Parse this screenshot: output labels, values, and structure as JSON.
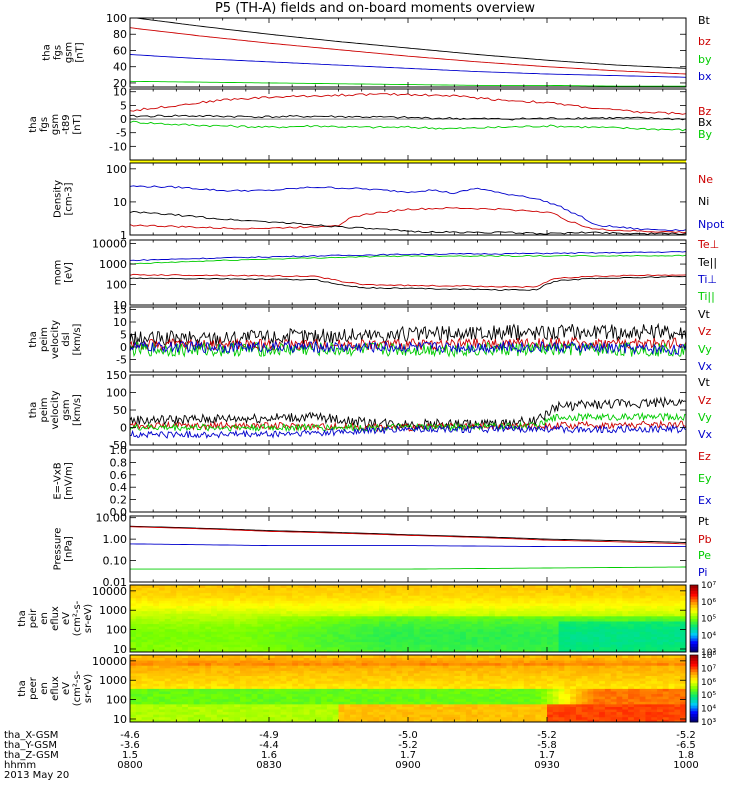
{
  "title": "P5 (TH-A) fields and on-board moments overview",
  "date": "2013 May 20",
  "time_axis": {
    "start": "08:00",
    "end": "10:00",
    "ticks": [
      "0800",
      "0830",
      "0900",
      "0930",
      "1000"
    ]
  },
  "ephemeris": {
    "rows": [
      {
        "label": "tha_X-GSM",
        "values": [
          "-4.6",
          "-4.9",
          "-5.0",
          "-5.2",
          "-5.2"
        ]
      },
      {
        "label": "tha_Y-GSM",
        "values": [
          "-3.6",
          "-4.4",
          "-5.2",
          "-5.8",
          "-6.5"
        ]
      },
      {
        "label": "tha_Z-GSM",
        "values": [
          "1.5",
          "1.6",
          "1.7",
          "1.7",
          "1.8"
        ]
      },
      {
        "label": "hhmm",
        "values": [
          "0800",
          "0830",
          "0900",
          "0930",
          "1000"
        ]
      }
    ]
  },
  "colors": {
    "black": "#000000",
    "red": "#cc0000",
    "green": "#00cc00",
    "blue": "#0000cc",
    "flag": "#ffff00"
  },
  "chart_data": [
    {
      "type": "line",
      "id": "p1",
      "ylabel": [
        "tha",
        "fgs",
        "gsm",
        "[nT]"
      ],
      "ylim": [
        15,
        100
      ],
      "log": false,
      "yticks": [
        "20",
        "40",
        "60",
        "80",
        "100"
      ],
      "series": [
        {
          "name": "Bt",
          "color": "#000000",
          "x": [
            0,
            15,
            30,
            45,
            60,
            75,
            90,
            105,
            120
          ],
          "y": [
            101,
            90,
            80,
            71,
            63,
            55,
            48,
            42,
            38
          ]
        },
        {
          "name": "bz",
          "color": "#cc0000",
          "x": [
            0,
            15,
            30,
            45,
            60,
            75,
            90,
            105,
            120
          ],
          "y": [
            88,
            78,
            69,
            61,
            53,
            46,
            40,
            35,
            31
          ]
        },
        {
          "name": "by",
          "color": "#00cc00",
          "x": [
            0,
            15,
            30,
            45,
            60,
            75,
            90,
            105,
            120
          ],
          "y": [
            22,
            21,
            20,
            19,
            18,
            17,
            17,
            16,
            16
          ]
        },
        {
          "name": "bx",
          "color": "#0000cc",
          "x": [
            0,
            15,
            30,
            45,
            60,
            75,
            90,
            105,
            120
          ],
          "y": [
            55,
            50,
            46,
            42,
            38,
            34,
            31,
            29,
            27
          ]
        }
      ]
    },
    {
      "type": "line",
      "id": "p2",
      "ylabel": [
        "tha",
        "fgs",
        "gsm",
        "-t89",
        "[nT]"
      ],
      "ylim": [
        -15,
        11
      ],
      "log": false,
      "yticks": [
        "-10",
        "-5",
        "0",
        "5",
        "10"
      ],
      "series": [
        {
          "name": "Bz",
          "color": "#cc0000",
          "x": [
            0,
            10,
            20,
            30,
            40,
            50,
            60,
            70,
            80,
            90,
            100,
            110,
            120
          ],
          "y": [
            3,
            5,
            7,
            8,
            8.5,
            9,
            9,
            8.5,
            7,
            6,
            4,
            2.5,
            2
          ]
        },
        {
          "name": "Bx",
          "color": "#000000",
          "x": [
            0,
            10,
            20,
            30,
            40,
            50,
            60,
            70,
            80,
            90,
            100,
            110,
            120
          ],
          "y": [
            1,
            1.2,
            1,
            0.8,
            1,
            0.8,
            0.5,
            0.2,
            0,
            0.2,
            0.4,
            0.3,
            0
          ]
        },
        {
          "name": "By",
          "color": "#00cc00",
          "x": [
            0,
            10,
            20,
            30,
            40,
            50,
            60,
            70,
            80,
            90,
            100,
            110,
            120
          ],
          "y": [
            -1,
            -2,
            -2.5,
            -3,
            -2.5,
            -3,
            -3,
            -3.5,
            -3,
            -2.5,
            -3,
            -3.5,
            -4
          ]
        }
      ]
    },
    {
      "type": "line",
      "id": "p3",
      "ylabel": [
        "Density",
        "[cm-3]"
      ],
      "ylim": [
        1,
        150
      ],
      "log": true,
      "yticks": [
        "1",
        "10",
        "100"
      ],
      "series": [
        {
          "name": "Ne",
          "color": "#cc0000",
          "x": [
            0,
            10,
            20,
            30,
            40,
            45,
            47,
            50,
            55,
            60,
            70,
            80,
            90,
            95,
            100,
            110,
            120
          ],
          "y": [
            2,
            1.8,
            1.6,
            1.6,
            1.8,
            2,
            3,
            4,
            5,
            6,
            6.5,
            6,
            5,
            2.5,
            1.5,
            1.3,
            1.2
          ]
        },
        {
          "name": "Ni",
          "color": "#000000",
          "x": [
            0,
            10,
            20,
            30,
            40,
            50,
            60,
            70,
            80,
            90,
            100,
            110,
            120
          ],
          "y": [
            5,
            4,
            3,
            2.5,
            2,
            1.6,
            1.3,
            1.2,
            1.2,
            1.1,
            1.2,
            1.1,
            1.1
          ]
        },
        {
          "name": "Npot",
          "color": "#0000cc",
          "x": [
            0,
            10,
            20,
            30,
            40,
            50,
            60,
            65,
            70,
            75,
            80,
            85,
            90,
            95,
            100,
            110,
            120
          ],
          "y": [
            30,
            28,
            22,
            22,
            28,
            25,
            20,
            23,
            18,
            26,
            18,
            15,
            10,
            5,
            2,
            1.5,
            1.4
          ]
        }
      ]
    },
    {
      "type": "line",
      "id": "p4",
      "ylabel": [
        "mom",
        "[eV]"
      ],
      "ylim": [
        10,
        15000
      ],
      "log": true,
      "yticks": [
        "10",
        "100",
        "1000",
        "10000"
      ],
      "series": [
        {
          "name": "Te⊥",
          "color": "#cc0000",
          "x": [
            0,
            20,
            40,
            45,
            50,
            60,
            70,
            80,
            88,
            92,
            100,
            110,
            120
          ],
          "y": [
            300,
            280,
            250,
            150,
            100,
            90,
            85,
            80,
            75,
            200,
            250,
            280,
            300
          ]
        },
        {
          "name": "Te||",
          "color": "#000000",
          "x": [
            0,
            20,
            40,
            45,
            50,
            60,
            70,
            80,
            88,
            92,
            100,
            110,
            120
          ],
          "y": [
            200,
            190,
            170,
            100,
            70,
            65,
            60,
            55,
            55,
            150,
            200,
            220,
            250
          ]
        },
        {
          "name": "Ti⊥",
          "color": "#0000cc",
          "x": [
            0,
            20,
            40,
            60,
            80,
            100,
            120
          ],
          "y": [
            1500,
            2000,
            2500,
            3000,
            3200,
            3500,
            4000
          ]
        },
        {
          "name": "Ti||",
          "color": "#00cc00",
          "x": [
            0,
            20,
            40,
            60,
            80,
            100,
            120
          ],
          "y": [
            1000,
            1500,
            2000,
            2500,
            2500,
            2500,
            2600
          ]
        }
      ]
    },
    {
      "type": "line",
      "id": "p5",
      "ylabel": [
        "tha",
        "peim",
        "velocity",
        "dsl",
        "[km/s]"
      ],
      "ylim": [
        -10,
        16
      ],
      "log": false,
      "yticks": [
        "-5",
        "0",
        "5",
        "10",
        "15"
      ],
      "noisy": true,
      "series": [
        {
          "name": "Vt",
          "color": "#000000",
          "x": [
            0,
            30,
            60,
            90,
            120
          ],
          "y": [
            3,
            4,
            5,
            6,
            6
          ]
        },
        {
          "name": "Vz",
          "color": "#cc0000",
          "x": [
            0,
            30,
            60,
            90,
            120
          ],
          "y": [
            1,
            1,
            1,
            1.5,
            1.5
          ]
        },
        {
          "name": "Vy",
          "color": "#00cc00",
          "x": [
            0,
            30,
            60,
            90,
            120
          ],
          "y": [
            -1,
            -1,
            -1,
            -1,
            -1
          ]
        },
        {
          "name": "Vx",
          "color": "#0000cc",
          "x": [
            0,
            30,
            60,
            90,
            120
          ],
          "y": [
            0,
            0,
            0,
            0,
            -1
          ]
        }
      ]
    },
    {
      "type": "line",
      "id": "p6",
      "ylabel": [
        "tha",
        "peim",
        "velocity",
        "gsm",
        "[km/s]"
      ],
      "ylim": [
        -50,
        150
      ],
      "log": false,
      "yticks": [
        "-50",
        "0",
        "50",
        "100",
        "150"
      ],
      "noisy": true,
      "series": [
        {
          "name": "Vt",
          "color": "#000000",
          "x": [
            0,
            20,
            40,
            50,
            60,
            70,
            80,
            88,
            92,
            100,
            110,
            120
          ],
          "y": [
            20,
            25,
            30,
            15,
            10,
            10,
            10,
            20,
            60,
            65,
            70,
            75
          ]
        },
        {
          "name": "Vz",
          "color": "#cc0000",
          "x": [
            0,
            30,
            60,
            90,
            120
          ],
          "y": [
            5,
            5,
            0,
            5,
            10
          ]
        },
        {
          "name": "Vy",
          "color": "#00cc00",
          "x": [
            0,
            30,
            60,
            88,
            92,
            120
          ],
          "y": [
            0,
            0,
            0,
            5,
            30,
            30
          ]
        },
        {
          "name": "Vx",
          "color": "#0000cc",
          "x": [
            0,
            30,
            60,
            90,
            120
          ],
          "y": [
            -20,
            -20,
            -5,
            -5,
            -5
          ]
        }
      ]
    },
    {
      "type": "line",
      "id": "p7",
      "ylabel": [
        "E=-VxB",
        "[mV/m]"
      ],
      "ylim": [
        0,
        1.0
      ],
      "log": false,
      "yticks": [
        "0.0",
        "0.2",
        "0.4",
        "0.6",
        "0.8",
        "1.0"
      ],
      "series": [
        {
          "name": "Ez",
          "color": "#cc0000",
          "x": [],
          "y": []
        },
        {
          "name": "Ey",
          "color": "#00cc00",
          "x": [],
          "y": []
        },
        {
          "name": "Ex",
          "color": "#0000cc",
          "x": [],
          "y": []
        }
      ]
    },
    {
      "type": "line",
      "id": "p8",
      "ylabel": [
        "Pressure",
        "[nPa]"
      ],
      "ylim": [
        0.01,
        12
      ],
      "log": true,
      "yticks": [
        "0.01",
        "0.10",
        "1.00",
        "10.00"
      ],
      "series": [
        {
          "name": "Pt",
          "color": "#000000",
          "x": [
            0,
            30,
            60,
            90,
            120
          ],
          "y": [
            4,
            2.5,
            1.6,
            1.0,
            0.7
          ]
        },
        {
          "name": "Pb",
          "color": "#cc0000",
          "x": [
            0,
            30,
            60,
            90,
            120
          ],
          "y": [
            3.8,
            2.3,
            1.5,
            0.9,
            0.6
          ]
        },
        {
          "name": "Pe",
          "color": "#00cc00",
          "x": [
            0,
            30,
            60,
            90,
            120
          ],
          "y": [
            0.04,
            0.04,
            0.04,
            0.045,
            0.05
          ]
        },
        {
          "name": "Pi",
          "color": "#0000cc",
          "x": [
            0,
            30,
            60,
            90,
            120
          ],
          "y": [
            0.6,
            0.5,
            0.5,
            0.45,
            0.45
          ]
        }
      ]
    },
    {
      "type": "heatmap",
      "id": "p9",
      "ylabel": [
        "tha",
        "peir",
        "en",
        "eflux",
        "eV",
        "(cm²-s-",
        "sr-eV)"
      ],
      "ylim": [
        7,
        20000
      ],
      "log": true,
      "yticks": [
        "10",
        "100",
        "1000",
        "10000"
      ],
      "colorbar": {
        "min_exp": 3,
        "max_exp": 7,
        "labels": [
          "10³",
          "10⁴",
          "10⁵",
          "10⁶",
          "10⁷"
        ]
      }
    },
    {
      "type": "heatmap",
      "id": "p10",
      "ylabel": [
        "tha",
        "peer",
        "en",
        "eflux",
        "eV",
        "(cm²-s-",
        "sr-eV)"
      ],
      "ylim": [
        7,
        20000
      ],
      "log": true,
      "yticks": [
        "10",
        "100",
        "1000",
        "10000"
      ],
      "colorbar": {
        "min_exp": 3,
        "max_exp": 8,
        "labels": [
          "10³",
          "10⁴",
          "10⁵",
          "10⁶",
          "10⁷",
          "10⁸"
        ]
      }
    }
  ]
}
